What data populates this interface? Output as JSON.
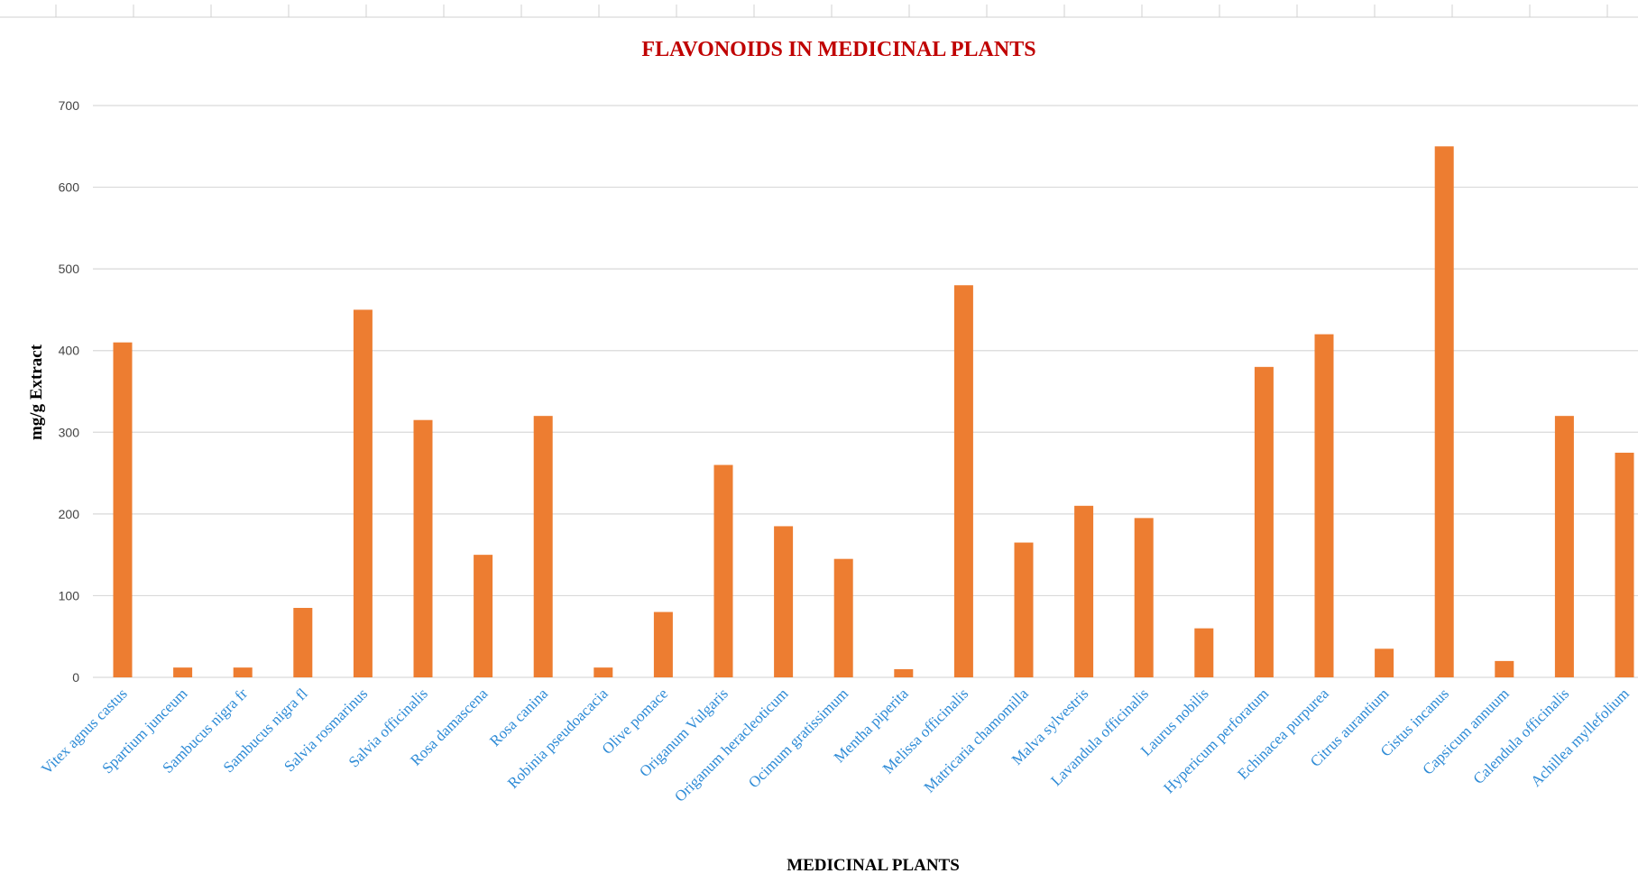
{
  "chart_data": {
    "type": "bar",
    "title": "FLAVONOIDS IN MEDICINAL PLANTS",
    "xlabel": "MEDICINAL PLANTS",
    "ylabel": "mg/g Extract",
    "ylim": [
      0,
      700
    ],
    "yticks": [
      0,
      100,
      200,
      300,
      400,
      500,
      600,
      700
    ],
    "grid": true,
    "legend": "none",
    "bar_color": "#ed7d31",
    "title_color": "#c00000",
    "tick_label_color": "#2e8bd6",
    "categories": [
      "Vitex agnus castus",
      "Spartium junceum",
      "Sambucus nigra fr",
      "Sambucus nigra fl",
      "Salvia rosmarinus",
      "Salvia officinalis",
      "Rosa damascena",
      "Rosa canina",
      "Robinia pseudoacacia",
      "Olive pomace",
      "Origanum Vulgaris",
      "Origanum heracleoticum",
      "Ocimum gratissimum",
      "Mentha piperita",
      "Melissa officinalis",
      "Matricaria chamomilla",
      "Malva sylvestris",
      "Lavandula officinalis",
      "Laurus nobilis",
      "Hypericum perforatum",
      "Echinacea purpurea",
      "Citrus aurantium",
      "Cistus incanus",
      "Capsicum annuum",
      "Calendula officinalis",
      "Achillea myllefolium"
    ],
    "values": [
      410,
      12,
      12,
      85,
      450,
      315,
      150,
      320,
      12,
      80,
      260,
      185,
      145,
      10,
      480,
      165,
      210,
      195,
      60,
      380,
      420,
      35,
      650,
      20,
      320,
      275
    ]
  }
}
